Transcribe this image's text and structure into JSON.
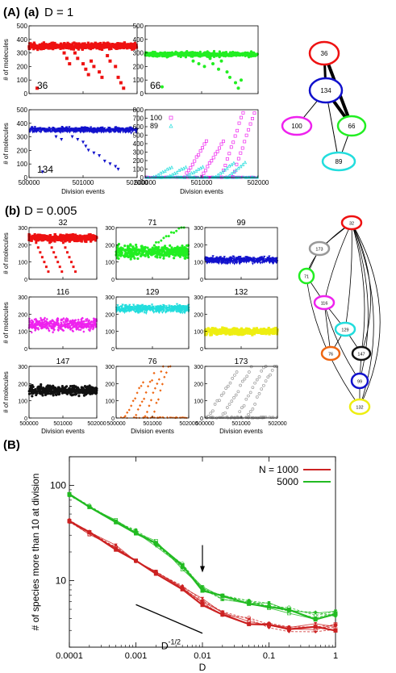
{
  "labels": {
    "panel_A": "(A)",
    "panel_a": "(a)",
    "panel_a_D": "D = 1",
    "panel_b": "(b)",
    "panel_b_D": "D = 0.005",
    "panel_B": "(B)"
  },
  "colors": {
    "red": "#ee1111",
    "green": "#22ee22",
    "blue": "#1111cc",
    "magenta": "#ee22ee",
    "cyan": "#22dddd",
    "yellow": "#eeee11",
    "black": "#111111",
    "orange": "#ee6611",
    "gray": "#999999",
    "dark_red": "#cc2222",
    "dark_green": "#22bb22"
  },
  "chart_data": [
    {
      "panel": "a",
      "type": "scatter",
      "series_label": "36",
      "color": "red",
      "xlim": [
        500000,
        502000
      ],
      "ylim": [
        0,
        500
      ],
      "y_ticks": [
        "0",
        "100",
        "200",
        "300",
        "400",
        "500"
      ],
      "x_ticks": [],
      "ylabel": "# of molecules",
      "xlabel": "",
      "band_mean": 350,
      "band_noise": 30,
      "drops": [
        [
          500650,
          300
        ],
        [
          500700,
          260
        ],
        [
          500750,
          220
        ],
        [
          500850,
          300
        ],
        [
          500900,
          260
        ],
        [
          501000,
          220
        ],
        [
          501050,
          180
        ],
        [
          501100,
          140
        ],
        [
          501150,
          240
        ],
        [
          501200,
          200
        ],
        [
          501300,
          160
        ],
        [
          501350,
          120
        ],
        [
          501450,
          280
        ],
        [
          501500,
          240
        ],
        [
          501600,
          200
        ],
        [
          501650,
          120
        ],
        [
          501700,
          80
        ],
        [
          501750,
          40
        ],
        [
          500150,
          40
        ]
      ]
    },
    {
      "panel": "a",
      "type": "scatter",
      "series_label": "66",
      "color": "green",
      "xlim": [
        500000,
        502000
      ],
      "ylim": [
        0,
        500
      ],
      "y_ticks": [
        "0",
        "100",
        "200",
        "300",
        "400",
        "500"
      ],
      "x_ticks": [],
      "ylabel": "",
      "xlabel": "",
      "band_mean": 290,
      "band_noise": 25,
      "drops": [
        [
          500850,
          240
        ],
        [
          500950,
          220
        ],
        [
          501050,
          200
        ],
        [
          501150,
          260
        ],
        [
          501200,
          220
        ],
        [
          501300,
          180
        ],
        [
          501350,
          240
        ],
        [
          501450,
          160
        ],
        [
          501500,
          120
        ],
        [
          501600,
          80
        ],
        [
          501650,
          40
        ],
        [
          501700,
          100
        ],
        [
          500300,
          50
        ]
      ]
    },
    {
      "panel": "a",
      "type": "scatter",
      "series_label": "134",
      "color": "blue",
      "xlim": [
        500000,
        502000
      ],
      "ylim": [
        0,
        500
      ],
      "y_ticks": [
        "0",
        "100",
        "200",
        "300",
        "400",
        "500"
      ],
      "x_ticks": [
        "500000",
        "501000",
        "502000"
      ],
      "ylabel": "# of molecules",
      "xlabel": "Division events",
      "band_mean": 350,
      "band_noise": 25,
      "drops": [
        [
          500500,
          300
        ],
        [
          500600,
          280
        ],
        [
          500800,
          300
        ],
        [
          500900,
          280
        ],
        [
          501000,
          260
        ],
        [
          501050,
          230
        ],
        [
          501100,
          200
        ],
        [
          501200,
          180
        ],
        [
          501300,
          160
        ],
        [
          501400,
          120
        ],
        [
          501500,
          100
        ],
        [
          501600,
          80
        ],
        [
          501650,
          60
        ],
        [
          500250,
          40
        ]
      ]
    },
    {
      "panel": "a",
      "type": "scatter",
      "color": "multi",
      "xlim": [
        500000,
        502000
      ],
      "ylim": [
        0,
        800
      ],
      "y_ticks": [
        "0",
        "100",
        "200",
        "300",
        "400",
        "500",
        "600",
        "700",
        "800"
      ],
      "x_ticks": [
        "500000",
        "501000",
        "502000"
      ],
      "ylabel": "",
      "xlabel": "Division events",
      "legend": [
        {
          "name": "100",
          "color": "magenta"
        },
        {
          "name": "89",
          "color": "cyan"
        }
      ]
    },
    {
      "panel": "b",
      "type": "scatter",
      "title": "32",
      "color": "red",
      "xlim": [
        500000,
        502000
      ],
      "ylim": [
        0,
        300
      ],
      "y_ticks": [
        "0",
        "100",
        "200",
        "300"
      ],
      "x_ticks": [],
      "ylabel": "# of molecules",
      "band_mean": 240,
      "band_noise": 25
    },
    {
      "panel": "b",
      "type": "scatter",
      "title": "71",
      "color": "green",
      "xlim": [
        500000,
        502000
      ],
      "ylim": [
        0,
        300
      ],
      "y_ticks": [
        "0",
        "100",
        "200",
        "300"
      ],
      "x_ticks": [],
      "ylabel": "",
      "band_mean": 160,
      "band_noise": 50
    },
    {
      "panel": "b",
      "type": "scatter",
      "title": "99",
      "color": "blue",
      "xlim": [
        500000,
        502000
      ],
      "ylim": [
        0,
        300
      ],
      "y_ticks": [
        "0",
        "100",
        "200",
        "300"
      ],
      "x_ticks": [],
      "ylabel": "",
      "band_mean": 110,
      "band_noise": 25
    },
    {
      "panel": "b",
      "type": "scatter",
      "title": "116",
      "color": "magenta",
      "xlim": [
        500000,
        502000
      ],
      "ylim": [
        0,
        300
      ],
      "y_ticks": [
        "0",
        "100",
        "200",
        "300"
      ],
      "x_ticks": [],
      "ylabel": "# of molecules",
      "band_mean": 140,
      "band_noise": 50
    },
    {
      "panel": "b",
      "type": "scatter",
      "title": "129",
      "color": "cyan",
      "xlim": [
        500000,
        502000
      ],
      "ylim": [
        0,
        300
      ],
      "y_ticks": [
        "0",
        "100",
        "200",
        "300"
      ],
      "x_ticks": [],
      "ylabel": "",
      "band_mean": 230,
      "band_noise": 30
    },
    {
      "panel": "b",
      "type": "scatter",
      "title": "132",
      "color": "yellow",
      "xlim": [
        500000,
        502000
      ],
      "ylim": [
        0,
        300
      ],
      "y_ticks": [
        "0",
        "100",
        "200",
        "300"
      ],
      "x_ticks": [],
      "ylabel": "",
      "band_mean": 100,
      "band_noise": 25
    },
    {
      "panel": "b",
      "type": "scatter",
      "title": "147",
      "color": "black",
      "xlim": [
        500000,
        502000
      ],
      "ylim": [
        0,
        300
      ],
      "y_ticks": [
        "0",
        "100",
        "200",
        "300"
      ],
      "x_ticks": [
        "500000",
        "501000",
        "502000"
      ],
      "ylabel": "# of molecules",
      "xlabel": "Division events",
      "band_mean": 160,
      "band_noise": 40
    },
    {
      "panel": "b",
      "type": "scatter",
      "title": "76",
      "color": "orange",
      "xlim": [
        500000,
        502000
      ],
      "ylim": [
        0,
        300
      ],
      "y_ticks": [
        "0",
        "100",
        "200",
        "300"
      ],
      "x_ticks": [
        "500000",
        "501000",
        "502000"
      ],
      "ylabel": "",
      "xlabel": "Division events",
      "band_mean": 0,
      "band_noise": 0
    },
    {
      "panel": "b",
      "type": "scatter",
      "title": "173",
      "color": "gray",
      "xlim": [
        500000,
        502000
      ],
      "ylim": [
        0,
        300
      ],
      "y_ticks": [
        "0",
        "100",
        "200",
        "300"
      ],
      "x_ticks": [
        "500000",
        "501000",
        "502000"
      ],
      "ylabel": "",
      "xlabel": "Division events",
      "band_mean": 0,
      "band_noise": 0
    },
    {
      "panel": "B",
      "type": "line",
      "xlabel": "D",
      "ylabel": "# of species more than 10 at division",
      "x_scale": "log",
      "y_scale": "log",
      "xlim": [
        0.0001,
        1
      ],
      "ylim": [
        2,
        200
      ],
      "x_ticks": [
        "0.0001",
        "0.001",
        "0.01",
        "0.1",
        "1"
      ],
      "y_ticks": [
        "10",
        "100"
      ],
      "annotation": "D",
      "annotation_exp": "-1/2",
      "legend_position": "top-right",
      "x": [
        0.0001,
        0.0002,
        0.0005,
        0.001,
        0.002,
        0.005,
        0.01,
        0.02,
        0.05,
        0.1,
        0.2,
        0.5,
        1
      ],
      "series": [
        {
          "name": "N = 1000",
          "color": "dark_red",
          "values": [
            42,
            32,
            22,
            16,
            12,
            8.5,
            6,
            4.5,
            3.8,
            3.4,
            3.2,
            3.2,
            3.2
          ]
        },
        {
          "name": "5000",
          "color": "dark_green",
          "values": [
            80,
            60,
            42,
            32,
            24,
            14,
            8.5,
            6.5,
            5.8,
            5.5,
            5.0,
            4.5,
            4.5
          ]
        }
      ]
    }
  ]
}
